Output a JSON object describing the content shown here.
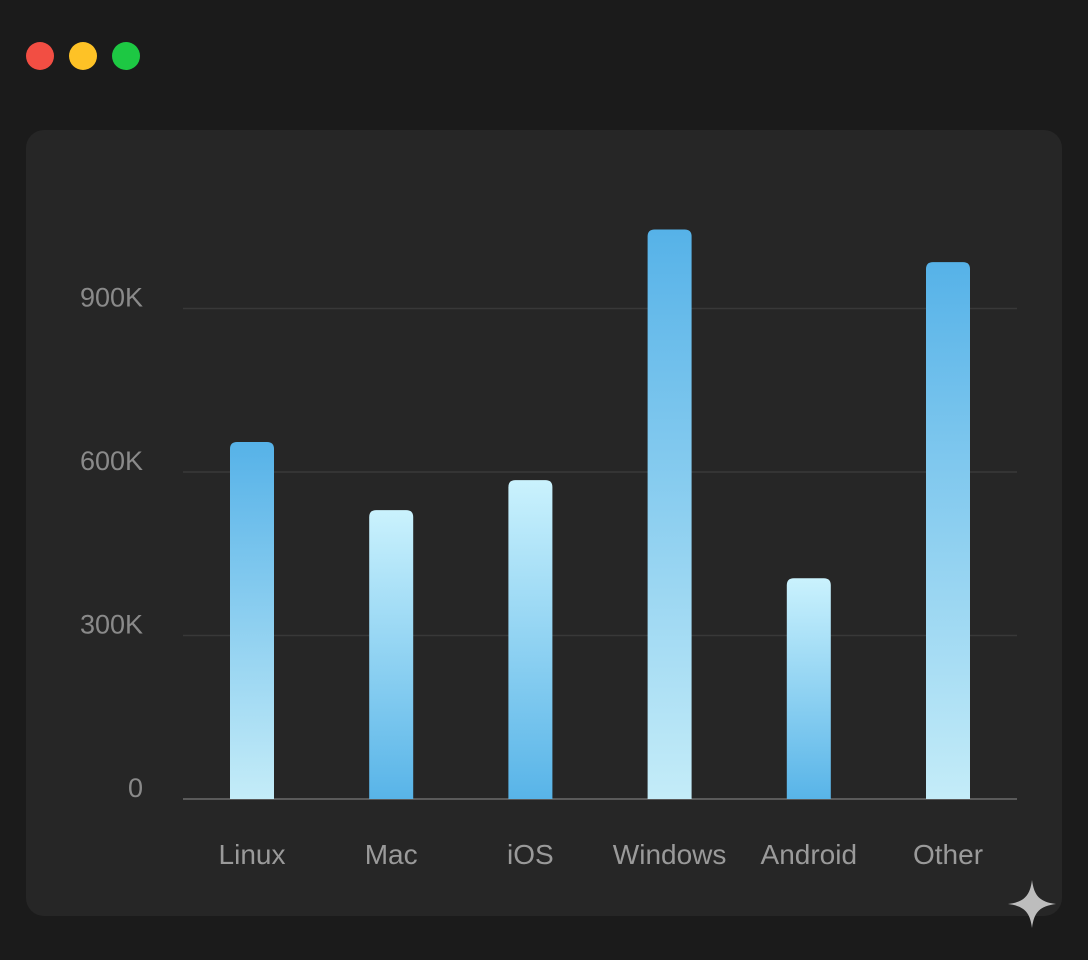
{
  "window": {
    "controls": [
      {
        "name": "close",
        "color": "#f24e43"
      },
      {
        "name": "minimize",
        "color": "#fec226"
      },
      {
        "name": "zoom",
        "color": "#1dc843"
      }
    ]
  },
  "chart_data": {
    "type": "bar",
    "categories": [
      "Linux",
      "Mac",
      "iOS",
      "Windows",
      "Android",
      "Other"
    ],
    "values": [
      655000,
      530000,
      585000,
      1045000,
      405000,
      985000
    ],
    "y_ticks": [
      0,
      300000,
      600000,
      900000
    ],
    "y_tick_labels": [
      "0",
      "300K",
      "600K",
      "900K"
    ],
    "ylim": [
      0,
      1100000
    ],
    "grid": true,
    "bar_gradients": [
      {
        "top": "#56b2e8",
        "bottom": "#c4ecf8"
      },
      {
        "top": "#caf2fd",
        "bottom": "#58b4e8"
      },
      {
        "top": "#caf2fd",
        "bottom": "#58b4e8"
      },
      {
        "top": "#56b2e8",
        "bottom": "#c4ecf8"
      },
      {
        "top": "#caf2fd",
        "bottom": "#58b4e8"
      },
      {
        "top": "#56b2e8",
        "bottom": "#c4ecf8"
      }
    ],
    "colors": {
      "grid": "#383838",
      "axis": "#5a5a5a",
      "tick_text": "#8a8a8a",
      "category_text": "#9a9a9a"
    }
  },
  "watermark": {
    "icon": "sparkle-icon",
    "color": "#bdbdbd"
  }
}
